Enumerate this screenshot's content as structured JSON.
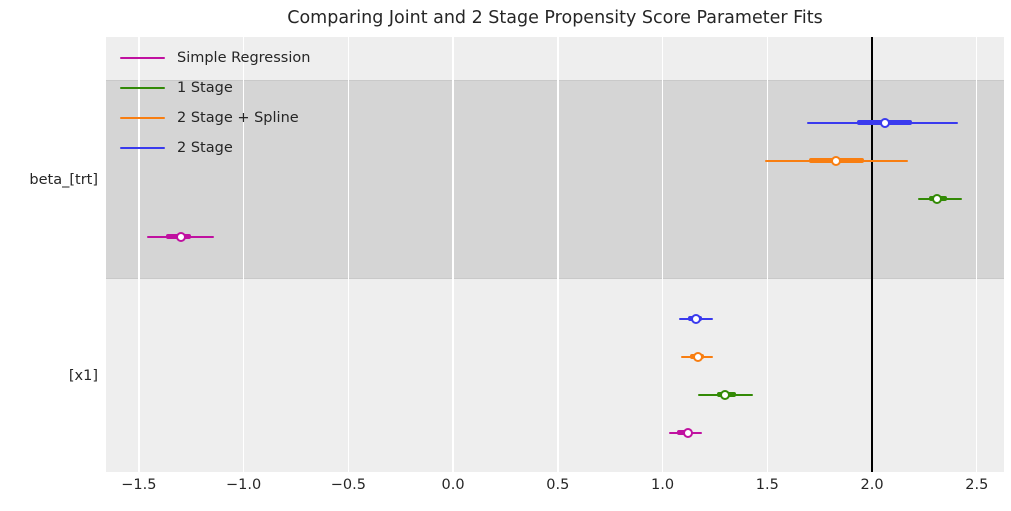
{
  "title": "Comparing Joint and 2 Stage Propensity Score Parameter Fits",
  "chart_data": {
    "type": "forest",
    "title": "Comparing Joint and 2 Stage Propensity Score Parameter Fits",
    "xlabel": "",
    "ylabel": "",
    "xlim": [
      -1.657,
      2.63
    ],
    "grid": true,
    "background_light": "#eeeeee",
    "band_shaded": "#d5d5d5",
    "gridline_color": "#ffffff",
    "text_color": "#262626",
    "xticks": [
      {
        "value": -1.5,
        "label": "−1.5"
      },
      {
        "value": -1.0,
        "label": "−1.0"
      },
      {
        "value": -0.5,
        "label": "−0.5"
      },
      {
        "value": 0.0,
        "label": "0.0"
      },
      {
        "value": 0.5,
        "label": "0.5"
      },
      {
        "value": 1.0,
        "label": "1.0"
      },
      {
        "value": 1.5,
        "label": "1.5"
      },
      {
        "value": 2.0,
        "label": "2.0"
      },
      {
        "value": 2.5,
        "label": "2.5"
      }
    ],
    "reference_line": {
      "x": 2.0,
      "color": "#000000"
    },
    "legend": {
      "position": "upper left",
      "entries": [
        {
          "label": "Simple Regression",
          "color": "#c011a0"
        },
        {
          "label": "1 Stage",
          "color": "#338a06"
        },
        {
          "label": "2 Stage + Spline",
          "color": "#f87e11"
        },
        {
          "label": "2 Stage",
          "color": "#3a3aee"
        }
      ]
    },
    "groups": [
      {
        "label": "beta_[trt]",
        "shaded": true,
        "rows": [
          {
            "series": "2 Stage",
            "color": "#3a3aee",
            "point": 2.06,
            "interval_thick": [
              1.93,
              2.19
            ],
            "interval_thin": [
              1.69,
              2.41
            ]
          },
          {
            "series": "2 Stage + Spline",
            "color": "#f87e11",
            "point": 1.83,
            "interval_thick": [
              1.7,
              1.96
            ],
            "interval_thin": [
              1.49,
              2.17
            ]
          },
          {
            "series": "1 Stage",
            "color": "#338a06",
            "point": 2.31,
            "interval_thick": [
              2.27,
              2.36
            ],
            "interval_thin": [
              2.22,
              2.43
            ]
          },
          {
            "series": "Simple Regression",
            "color": "#c011a0",
            "point": -1.3,
            "interval_thick": [
              -1.37,
              -1.25
            ],
            "interval_thin": [
              -1.46,
              -1.14
            ]
          }
        ]
      },
      {
        "label": "[x1]",
        "shaded": false,
        "rows": [
          {
            "series": "2 Stage",
            "color": "#3a3aee",
            "point": 1.16,
            "interval_thick": [
              1.12,
              1.19
            ],
            "interval_thin": [
              1.08,
              1.24
            ]
          },
          {
            "series": "2 Stage + Spline",
            "color": "#f87e11",
            "point": 1.17,
            "interval_thick": [
              1.13,
              1.2
            ],
            "interval_thin": [
              1.09,
              1.24
            ]
          },
          {
            "series": "1 Stage",
            "color": "#338a06",
            "point": 1.3,
            "interval_thick": [
              1.26,
              1.35
            ],
            "interval_thin": [
              1.17,
              1.43
            ]
          },
          {
            "series": "Simple Regression",
            "color": "#c011a0",
            "point": 1.12,
            "interval_thick": [
              1.07,
              1.14
            ],
            "interval_thin": [
              1.03,
              1.19
            ]
          }
        ]
      }
    ]
  }
}
